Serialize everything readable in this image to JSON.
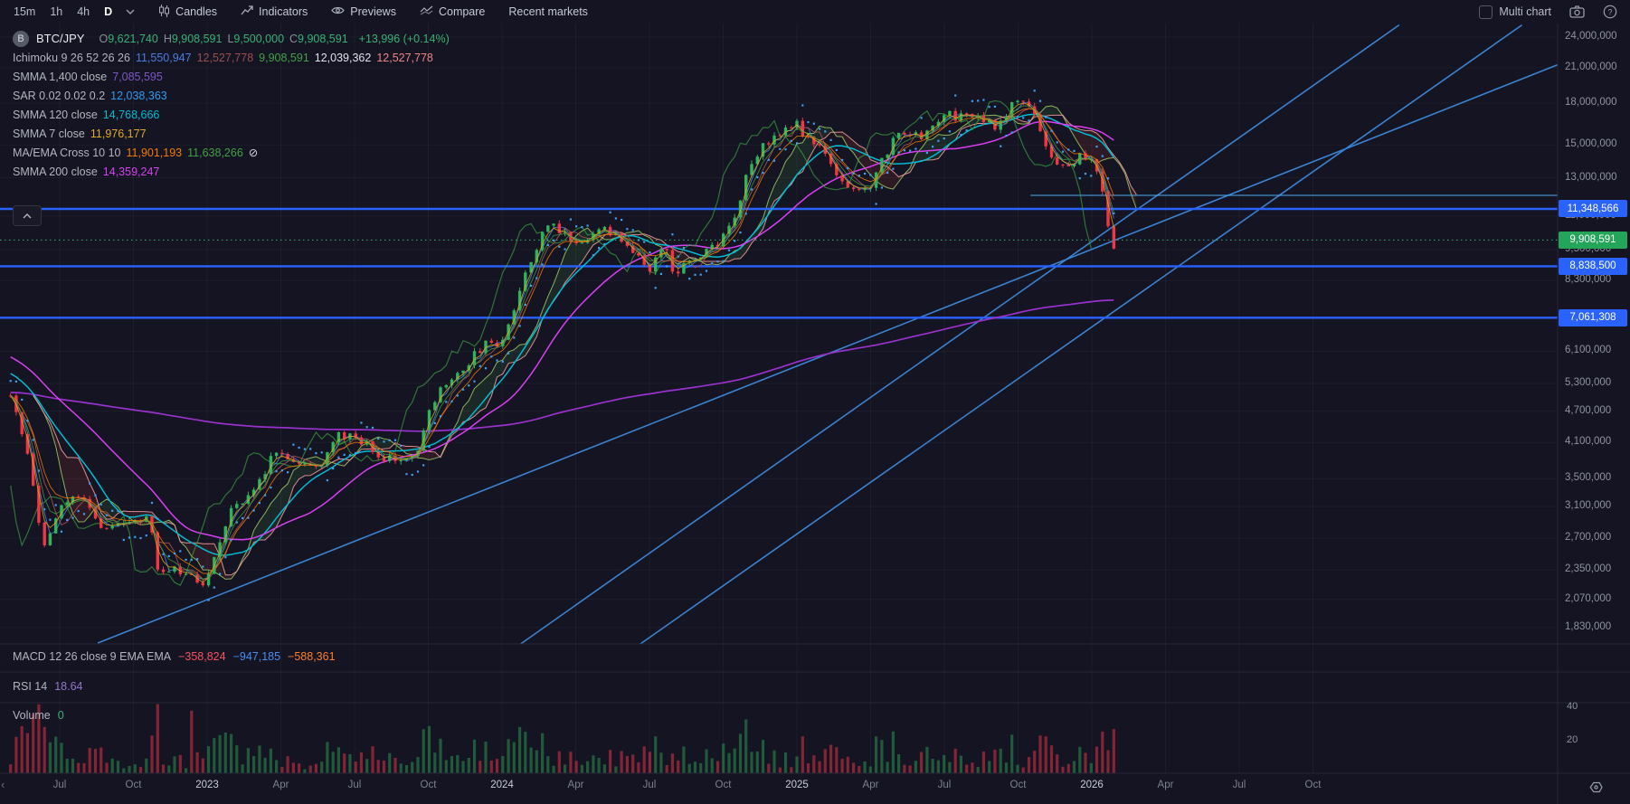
{
  "toolbar": {
    "timeframes": [
      "15m",
      "1h",
      "4h",
      "D"
    ],
    "active_timeframe": "D",
    "candles_label": "Candles",
    "indicators_label": "Indicators",
    "previews_label": "Previews",
    "compare_label": "Compare",
    "recent_markets_label": "Recent markets",
    "multi_chart_label": "Multi chart"
  },
  "legend": {
    "symbol_badge": "B",
    "symbol": "BTC/JPY",
    "ohlc": [
      {
        "k": "O",
        "v": "9,621,740"
      },
      {
        "k": "H",
        "v": "9,908,591"
      },
      {
        "k": "L",
        "v": "9,500,000"
      },
      {
        "k": "C",
        "v": "9,908,591"
      }
    ],
    "change": "+13,996 (+0.14%)",
    "ohlc_color": "#35b374",
    "rows": [
      {
        "label": "Ichimoku 9 26 52 26 26",
        "values": [
          {
            "text": "11,550,947",
            "color": "#4a7de0"
          },
          {
            "text": "12,527,778",
            "color": "#9c4f4f"
          },
          {
            "text": "9,908,591",
            "color": "#43a047"
          },
          {
            "text": "12,039,362",
            "color": "#dfe2ea"
          },
          {
            "text": "12,527,778",
            "color": "#ef8686"
          }
        ]
      },
      {
        "label": "SMMA 1,400 close",
        "values": [
          {
            "text": "7,085,595",
            "color": "#7e57c2"
          }
        ]
      },
      {
        "label": "SAR 0.02 0.02 0.2",
        "values": [
          {
            "text": "12,038,363",
            "color": "#2d9bf0"
          }
        ]
      },
      {
        "label": "SMMA 120 close",
        "values": [
          {
            "text": "14,768,666",
            "color": "#00bcd4"
          }
        ]
      },
      {
        "label": "SMMA 7 close",
        "values": [
          {
            "text": "11,976,177",
            "color": "#e2ac17"
          }
        ]
      },
      {
        "label": "MA/EMA Cross 10 10",
        "values": [
          {
            "text": "11,901,193",
            "color": "#f57c00"
          },
          {
            "text": "11,638,266",
            "color": "#43a047"
          }
        ],
        "suffix_icon": "⊘"
      },
      {
        "label": "SMMA 200 close",
        "values": [
          {
            "text": "14,359,247",
            "color": "#d93ff2"
          }
        ]
      }
    ]
  },
  "panes": {
    "macd": {
      "label": "MACD 12 26 close 9 EMA EMA",
      "values": [
        {
          "text": "−358,824",
          "color": "#f7525f"
        },
        {
          "text": "−947,185",
          "color": "#4a8df0"
        },
        {
          "text": "−588,361",
          "color": "#ff7f2a"
        }
      ]
    },
    "rsi": {
      "label": "RSI 14",
      "value": "18.64",
      "value_color": "#9575cd"
    },
    "volume": {
      "label": "Volume",
      "value": "0",
      "value_color": "#2bb673"
    },
    "volume_axis": [
      "40",
      "20"
    ]
  },
  "price_axis": {
    "ticks": [
      {
        "text": "24,000,000",
        "price": 24000000
      },
      {
        "text": "21,000,000",
        "price": 21000000
      },
      {
        "text": "18,000,000",
        "price": 18000000
      },
      {
        "text": "15,000,000",
        "price": 15000000
      },
      {
        "text": "13,000,000",
        "price": 13000000
      },
      {
        "text": "11,000,000",
        "price": 11000000
      },
      {
        "text": "9,500,000",
        "price": 9500000
      },
      {
        "text": "8,300,000",
        "price": 8300000
      },
      {
        "text": "6,100,000",
        "price": 6100000
      },
      {
        "text": "5,300,000",
        "price": 5300000
      },
      {
        "text": "4,700,000",
        "price": 4700000
      },
      {
        "text": "4,100,000",
        "price": 4100000
      },
      {
        "text": "3,500,000",
        "price": 3500000
      },
      {
        "text": "3,100,000",
        "price": 3100000
      },
      {
        "text": "2,700,000",
        "price": 2700000
      },
      {
        "text": "2,350,000",
        "price": 2350000
      },
      {
        "text": "2,070,000",
        "price": 2070000
      },
      {
        "text": "1,830,000",
        "price": 1830000
      }
    ],
    "price_labels": [
      {
        "text": "11,348,566",
        "price": 11348566,
        "bg": "#2962ff"
      },
      {
        "text": "9,908,591",
        "price": 9908591,
        "bg": "#23a55a"
      },
      {
        "text": "8,838,500",
        "price": 8838500,
        "bg": "#2962ff"
      },
      {
        "text": "7,061,308",
        "price": 7061308,
        "bg": "#2962ff"
      }
    ]
  },
  "time_axis": {
    "labels": [
      {
        "text": "Jul",
        "major": false
      },
      {
        "text": "Oct",
        "major": false
      },
      {
        "text": "2023",
        "major": true
      },
      {
        "text": "Apr",
        "major": false
      },
      {
        "text": "Jul",
        "major": false
      },
      {
        "text": "Oct",
        "major": false
      },
      {
        "text": "2024",
        "major": true
      },
      {
        "text": "Apr",
        "major": false
      },
      {
        "text": "Jul",
        "major": false
      },
      {
        "text": "Oct",
        "major": false
      },
      {
        "text": "2025",
        "major": true
      },
      {
        "text": "Apr",
        "major": false
      },
      {
        "text": "Jul",
        "major": false
      },
      {
        "text": "Oct",
        "major": false
      },
      {
        "text": "2026",
        "major": true
      },
      {
        "text": "Apr",
        "major": false
      },
      {
        "text": "Jul",
        "major": false
      },
      {
        "text": "Oct",
        "major": false
      }
    ]
  },
  "chart_data": {
    "type": "candlestick",
    "symbol": "BTC/JPY",
    "timeframe": "D",
    "scale": "log",
    "ylim": [
      1710000,
      25500000
    ],
    "x_axis_start": "May 2022",
    "x_axis_end": "Oct 2026",
    "current_price": 9908591,
    "horizontal_rays": [
      11348566,
      8838500,
      7061308
    ],
    "kijun_ray": {
      "price": 12040000,
      "from_t": 41.5
    },
    "price_anchors": [
      [
        0,
        4950000
      ],
      [
        0.6,
        4050000
      ],
      [
        1.0,
        3150000
      ],
      [
        1.35,
        2620000
      ],
      [
        2,
        3050000
      ],
      [
        2.6,
        3220000
      ],
      [
        3,
        3250000
      ],
      [
        3.5,
        2950000
      ],
      [
        4,
        2780000
      ],
      [
        4.6,
        2870000
      ],
      [
        5,
        2900000
      ],
      [
        5.6,
        2960000
      ],
      [
        5.95,
        2400000
      ],
      [
        6.4,
        2320000
      ],
      [
        7,
        2360000
      ],
      [
        7.7,
        2230000
      ],
      [
        8.1,
        2280000
      ],
      [
        8.6,
        2760000
      ],
      [
        9,
        3100000
      ],
      [
        9.6,
        3210000
      ],
      [
        10,
        3320000
      ],
      [
        10.5,
        3760000
      ],
      [
        11,
        3950000
      ],
      [
        11.5,
        3850000
      ],
      [
        12,
        3670000
      ],
      [
        12.6,
        3680000
      ],
      [
        13,
        4120000
      ],
      [
        13.5,
        4260000
      ],
      [
        14,
        4200000
      ],
      [
        14.6,
        4060000
      ],
      [
        15,
        3780000
      ],
      [
        15.5,
        3820000
      ],
      [
        16,
        3860000
      ],
      [
        16.6,
        3980000
      ],
      [
        17,
        4620000
      ],
      [
        17.5,
        5120000
      ],
      [
        18,
        5450000
      ],
      [
        18.6,
        5680000
      ],
      [
        19,
        6100000
      ],
      [
        19.5,
        6350000
      ],
      [
        20,
        6220000
      ],
      [
        20.5,
        7400000
      ],
      [
        21,
        8800000
      ],
      [
        21.5,
        9900000
      ],
      [
        22,
        10700000
      ],
      [
        22.5,
        10200000
      ],
      [
        23,
        9700000
      ],
      [
        23.5,
        9950000
      ],
      [
        24,
        10400000
      ],
      [
        24.5,
        10100000
      ],
      [
        25,
        9700000
      ],
      [
        25.5,
        9300000
      ],
      [
        26,
        8700000
      ],
      [
        26.6,
        9700000
      ],
      [
        27,
        8400000
      ],
      [
        27.5,
        8950000
      ],
      [
        28,
        9250000
      ],
      [
        28.5,
        9600000
      ],
      [
        29,
        9950000
      ],
      [
        29.6,
        11100000
      ],
      [
        30,
        13400000
      ],
      [
        30.5,
        14800000
      ],
      [
        31,
        15300000
      ],
      [
        31.5,
        16000000
      ],
      [
        32,
        16300000
      ],
      [
        32.5,
        15200000
      ],
      [
        33,
        14600000
      ],
      [
        33.5,
        13300000
      ],
      [
        34,
        12700000
      ],
      [
        34.5,
        12150000
      ],
      [
        35,
        12700000
      ],
      [
        35.5,
        14100000
      ],
      [
        36,
        15400000
      ],
      [
        36.5,
        16000000
      ],
      [
        37,
        15600000
      ],
      [
        37.5,
        16400000
      ],
      [
        38,
        17200000
      ],
      [
        38.5,
        16900000
      ],
      [
        39,
        17300000
      ],
      [
        39.5,
        16600000
      ],
      [
        40,
        16300000
      ],
      [
        40.5,
        17200000
      ],
      [
        41,
        18200000
      ],
      [
        41.35,
        18400000
      ],
      [
        41.8,
        16700000
      ],
      [
        42.1,
        14900000
      ],
      [
        42.6,
        13800000
      ],
      [
        43,
        13600000
      ],
      [
        43.6,
        14600000
      ],
      [
        44,
        13900000
      ],
      [
        44.35,
        12800000
      ],
      [
        44.65,
        10700000
      ],
      [
        44.9,
        9600000
      ],
      [
        45.05,
        9908591
      ]
    ],
    "trend_lines": [
      [
        20.73,
        1700000,
        56.5,
        25300000
      ],
      [
        25.6,
        1700000,
        61.5,
        25300000
      ],
      [
        3.55,
        1710000,
        65.9,
        24100000
      ]
    ],
    "volume_spikes": [
      [
        7.4,
        38
      ],
      [
        9.3,
        17
      ],
      [
        10.6,
        15
      ],
      [
        13.2,
        13
      ],
      [
        21.4,
        14
      ],
      [
        26.9,
        12
      ],
      [
        30.2,
        13
      ],
      [
        44.7,
        14
      ]
    ],
    "colors": {
      "up": "#2fb35c",
      "down": "#f23645",
      "cloud_bull": "rgba(76,175,80,0.13)",
      "cloud_bear": "rgba(229,77,66,0.12)",
      "span_a": "#9ccc65",
      "span_b": "#ef9a9a",
      "ray": "#2962ff",
      "trend": "#3b82d0",
      "price_line": "#2bb673",
      "sar": "#3da0f2",
      "sma120": "#00bcd4",
      "sma200": "#d93ff2",
      "sma1400": "#9932cc",
      "sma7": "#e0ac12",
      "ema_fast": "#f57c00",
      "ma_fast": "#43a047",
      "tenkan": "#4985e7",
      "kijun": "#b35454",
      "chikou": "#3a9e3f",
      "vol_up": "rgba(44,160,84,0.5)",
      "vol_down": "rgba(242,54,69,0.5)"
    }
  }
}
